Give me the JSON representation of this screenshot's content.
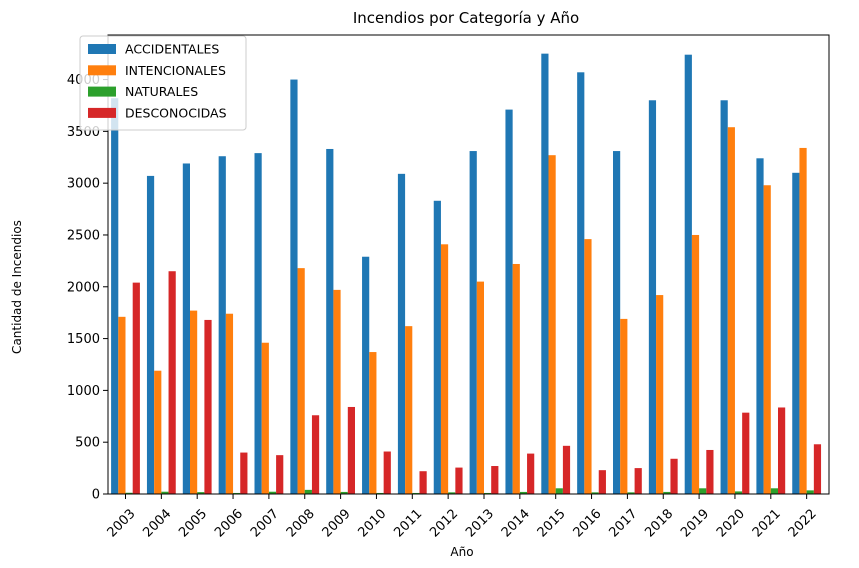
{
  "chart_data": {
    "type": "bar",
    "title": "Incendios por Categoría y Año",
    "xlabel": "Año",
    "ylabel": "Cantidad de Incendios",
    "ylim": [
      0,
      4430
    ],
    "yticks": [
      0,
      500,
      1000,
      1500,
      2000,
      2500,
      3000,
      3500,
      4000
    ],
    "grid": false,
    "legend_position": "upper left",
    "categories": [
      "2003",
      "2004",
      "2005",
      "2006",
      "2007",
      "2008",
      "2009",
      "2010",
      "2011",
      "2012",
      "2013",
      "2014",
      "2015",
      "2016",
      "2017",
      "2018",
      "2019",
      "2020",
      "2021",
      "2022"
    ],
    "series": [
      {
        "name": "ACCIDENTALES",
        "color": "#1f77b4",
        "values": [
          3820,
          3070,
          3190,
          3260,
          3290,
          4000,
          3330,
          2290,
          3090,
          2830,
          3310,
          3710,
          4250,
          4070,
          3310,
          3800,
          4240,
          3800,
          3240,
          3100
        ]
      },
      {
        "name": "INTENCIONALES",
        "color": "#ff7f0e",
        "values": [
          1710,
          1190,
          1770,
          1740,
          1460,
          2180,
          1970,
          1370,
          1620,
          2410,
          2050,
          2220,
          3270,
          2460,
          1690,
          1920,
          2500,
          3540,
          2980,
          3340
        ]
      },
      {
        "name": "NATURALES",
        "color": "#2ca02c",
        "values": [
          12,
          22,
          18,
          10,
          22,
          40,
          20,
          10,
          10,
          16,
          10,
          20,
          55,
          16,
          16,
          20,
          55,
          25,
          55,
          35
        ]
      },
      {
        "name": "DESCONOCIDAS",
        "color": "#d62728",
        "values": [
          2040,
          2150,
          1680,
          400,
          375,
          760,
          840,
          410,
          220,
          255,
          270,
          390,
          465,
          230,
          250,
          340,
          425,
          785,
          835,
          480
        ]
      }
    ]
  }
}
